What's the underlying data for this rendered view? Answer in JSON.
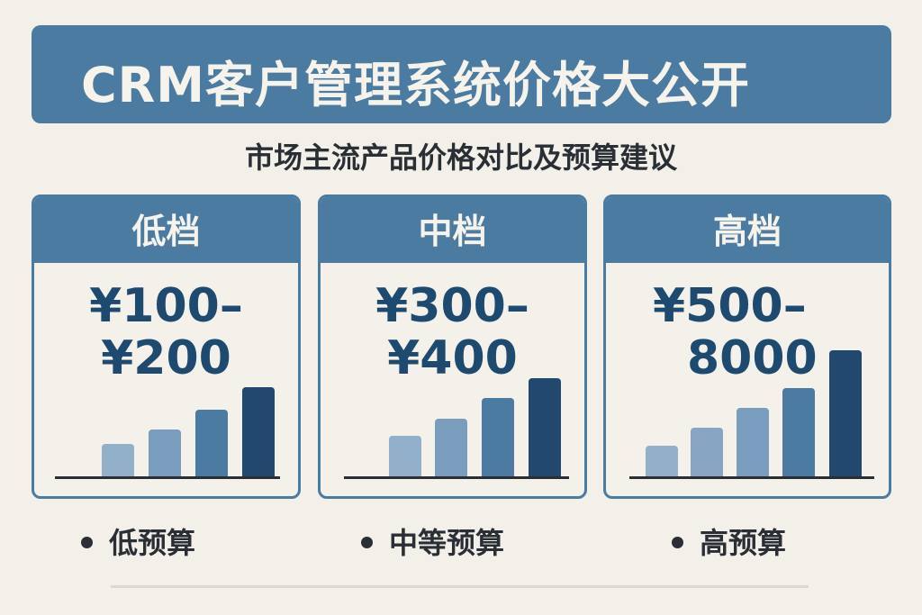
{
  "title": "CRM客户管理系统价格大公开",
  "subtitle": "市场主流产品价格对比及预算建议",
  "tiers": [
    {
      "name": "低档",
      "price_line1": "¥100–",
      "price_line2": "¥200",
      "budget": "低预算"
    },
    {
      "name": "中档",
      "price_line1": "¥300–",
      "price_line2": "¥400",
      "budget": "中等预算"
    },
    {
      "name": "高档",
      "price_line1": "¥500–",
      "price_line2": "8000",
      "budget": "高预算"
    }
  ],
  "colors": {
    "primary": "#4b7ba1",
    "dark": "#1f4a70",
    "background": "#f3f0e9"
  }
}
